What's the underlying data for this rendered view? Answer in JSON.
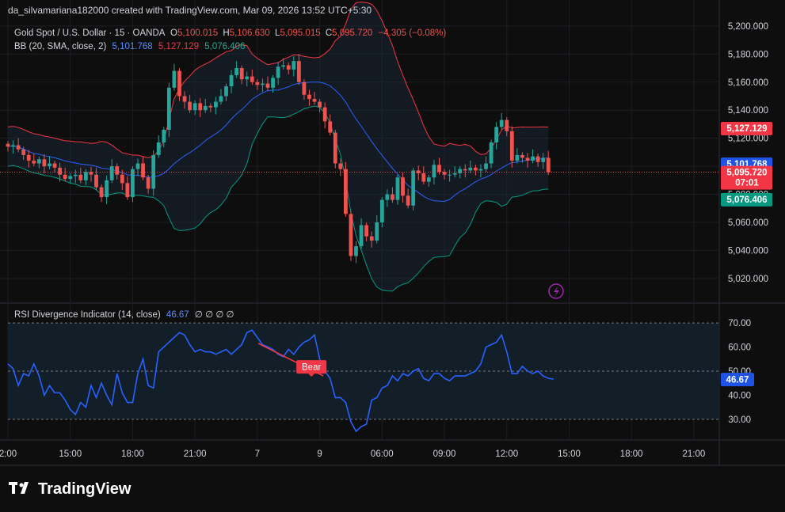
{
  "header": {
    "author_line": "da_silvamariana182000 created with TradingView.com, Mar 09, 2026 13:52 UTC+5:30"
  },
  "legend": {
    "symbol": "Gold Spot / U.S. Dollar · 15 · OANDA",
    "o_label": "O",
    "o_value": "5,100.015",
    "h_label": "H",
    "h_value": "5,106.630",
    "l_label": "L",
    "l_value": "5,095.015",
    "c_label": "C",
    "c_value": "5,095.720",
    "change": "−4.305 (−0.08%)",
    "bb_label": "BB (20, SMA, close, 2)",
    "bb_basis": "5,101.768",
    "bb_upper": "5,127.129",
    "bb_lower": "5,076.406",
    "rsi_label": "RSI Divergence Indicator (14, close)",
    "rsi_value": "46.67",
    "rsi_extra": "∅ ∅ ∅ ∅"
  },
  "price_badges": {
    "upper": "5,127.129",
    "basis": "5,101.768",
    "last": "5,095.720",
    "countdown": "07:01",
    "lower": "5,076.406",
    "rsi": "46.67"
  },
  "bear_label": "Bear",
  "brand": {
    "name": "TradingView"
  },
  "colors": {
    "up": "#26a69a",
    "down": "#ef5350",
    "basis": "#2962ff",
    "upper": "#f23645",
    "lower": "#089981",
    "rsi": "#2962ff",
    "badge_basis": "#1e53e5"
  },
  "chart_data": [
    {
      "type": "candlestick",
      "title": "Gold Spot / U.S. Dollar · 15 · OANDA",
      "ylim": [
        5003,
        5205
      ],
      "y_ticks": [
        5020,
        5040,
        5060,
        5080,
        5100,
        5120,
        5140,
        5160,
        5180,
        5200
      ],
      "y_tick_labels": [
        "5,020.000",
        "5,040.000",
        "5,060.000",
        "5,080.000",
        "5,100.000",
        "5,120.000",
        "5,140.000",
        "5,160.000",
        "5,180.000",
        "5,200.000"
      ],
      "x_ticks": [
        {
          "label": "2:00",
          "bar": 0
        },
        {
          "label": "15:00",
          "bar": 12
        },
        {
          "label": "18:00",
          "bar": 24
        },
        {
          "label": "21:00",
          "bar": 36
        },
        {
          "label": "7",
          "bar": 48
        },
        {
          "label": "9",
          "bar": 60
        },
        {
          "label": "06:00",
          "bar": 72
        },
        {
          "label": "09:00",
          "bar": 84
        },
        {
          "label": "12:00",
          "bar": 96
        },
        {
          "label": "15:00",
          "bar": 108
        },
        {
          "label": "18:00",
          "bar": 120
        },
        {
          "label": "21:00",
          "bar": 132
        }
      ],
      "close": [
        5114,
        5115,
        5112,
        5108,
        5104,
        5102,
        5105,
        5100,
        5102,
        5099,
        5094,
        5091,
        5093,
        5094,
        5090,
        5096,
        5094,
        5085,
        5078,
        5090,
        5100,
        5094,
        5088,
        5078,
        5098,
        5102,
        5092,
        5084,
        5108,
        5117,
        5126,
        5156,
        5168,
        5150,
        5146,
        5140,
        5145,
        5140,
        5143,
        5142,
        5146,
        5150,
        5157,
        5165,
        5170,
        5162,
        5164,
        5160,
        5158,
        5159,
        5156,
        5163,
        5171,
        5172,
        5169,
        5175,
        5160,
        5151,
        5148,
        5146,
        5142,
        5132,
        5124,
        5102,
        5098,
        5066,
        5036,
        5043,
        5058,
        5050,
        5047,
        5060,
        5076,
        5080,
        5076,
        5092,
        5079,
        5072,
        5097,
        5095,
        5089,
        5092,
        5101,
        5096,
        5094,
        5094,
        5095,
        5098,
        5097,
        5099,
        5097,
        5098,
        5102,
        5117,
        5128,
        5133,
        5125,
        5104,
        5108,
        5106,
        5104,
        5107,
        5103,
        5106,
        5095.72
      ],
      "bollinger": {
        "params": "20, SMA, close, 2",
        "basis_last": 5101.768,
        "upper_last": 5127.129,
        "lower_last": 5076.406
      },
      "last_price": 5095.72
    },
    {
      "type": "line",
      "title": "RSI Divergence Indicator (14, close)",
      "ylim": [
        27,
        72
      ],
      "y_ticks": [
        30,
        40,
        50,
        60,
        70
      ],
      "y_tick_labels": [
        "30.00",
        "40.00",
        "50.00",
        "60.00",
        "70.00"
      ],
      "levels": [
        30,
        50,
        70
      ],
      "x": [
        0,
        1,
        2,
        3,
        4,
        5,
        6,
        7,
        8,
        9,
        10,
        11,
        12,
        13,
        14,
        15,
        16,
        17,
        18,
        19,
        20,
        21,
        22,
        23,
        24,
        25,
        26,
        27,
        28,
        29,
        30,
        31,
        32,
        33,
        34,
        35,
        36,
        37,
        38,
        39,
        40,
        41,
        42,
        43,
        44,
        45,
        46,
        47,
        48,
        49,
        50,
        51,
        52,
        53,
        54,
        55,
        56,
        57,
        58,
        59,
        60,
        61,
        62,
        63,
        64,
        65,
        66,
        67,
        68,
        69,
        70,
        71,
        72,
        73,
        74,
        75,
        76,
        77,
        78,
        79,
        80,
        81,
        82,
        83,
        84,
        85,
        86,
        87,
        88,
        89,
        90,
        91,
        92,
        93,
        94,
        95,
        96,
        97,
        98,
        99,
        100,
        101,
        102,
        103,
        104,
        105
      ],
      "values": [
        53,
        51,
        44,
        49,
        48,
        53,
        48,
        40,
        44,
        41,
        41,
        38,
        34,
        32,
        37,
        35,
        44,
        39,
        45,
        40,
        36,
        49,
        41,
        37,
        37,
        49,
        55,
        44,
        43,
        58,
        60,
        62,
        64,
        66,
        65,
        61,
        58,
        59,
        58,
        58,
        57,
        58,
        59,
        57,
        59,
        61,
        66,
        67,
        64,
        61,
        60,
        59,
        57,
        56,
        59,
        57,
        60,
        62,
        63,
        65,
        55,
        50,
        47,
        39,
        39,
        37,
        29,
        25,
        27,
        28,
        38,
        39,
        43,
        44,
        48,
        46,
        49,
        48,
        50,
        51,
        47,
        46,
        49,
        49,
        47,
        46,
        48,
        48,
        48,
        49,
        50,
        53,
        60,
        61,
        62,
        65,
        58,
        49,
        49,
        52,
        50,
        49,
        50,
        48,
        47,
        46.67
      ],
      "divergence": {
        "label": "Bear",
        "from_bar": 50,
        "to_bar": 61
      }
    }
  ]
}
